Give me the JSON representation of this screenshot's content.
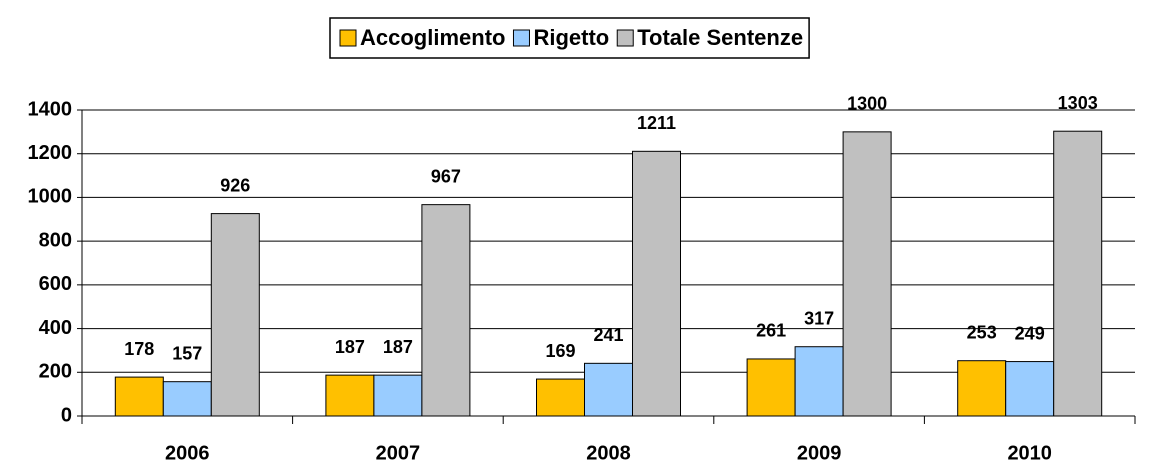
{
  "chart_data": {
    "type": "bar",
    "categories": [
      "2006",
      "2007",
      "2008",
      "2009",
      "2010"
    ],
    "series": [
      {
        "name": "Accoglimento",
        "color": "#ffc000",
        "values": [
          178,
          187,
          169,
          261,
          253
        ]
      },
      {
        "name": "Rigetto",
        "color": "#99ccff",
        "values": [
          157,
          187,
          241,
          317,
          249
        ]
      },
      {
        "name": "Totale Sentenze",
        "color": "#c0c0c0",
        "values": [
          926,
          967,
          1211,
          1300,
          1303
        ]
      }
    ],
    "ylim": [
      0,
      1400
    ],
    "yticks": [
      0,
      200,
      400,
      600,
      800,
      1000,
      1200,
      1400
    ],
    "grid": true,
    "legend": "top"
  }
}
